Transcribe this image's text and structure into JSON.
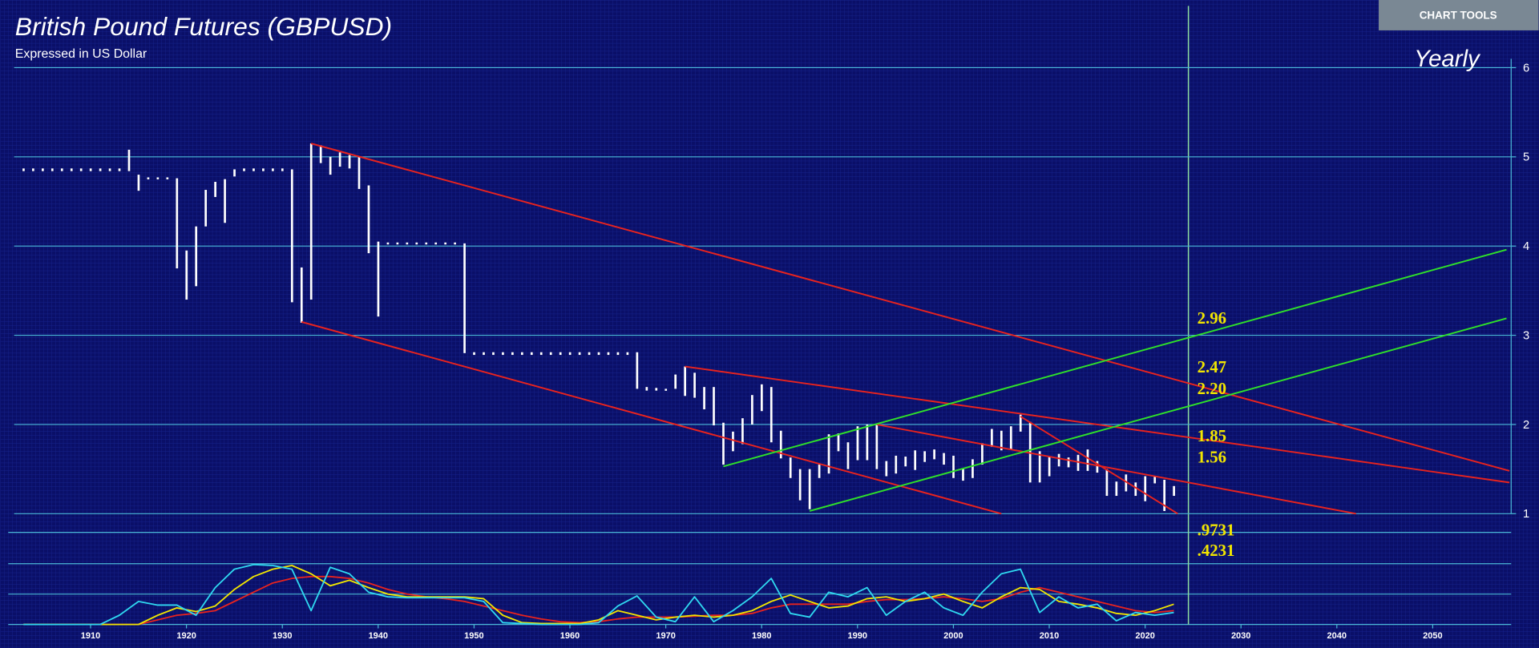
{
  "toolbar": {
    "button": "CHART TOOLS"
  },
  "chart_data": [
    {
      "type": "ohlc",
      "title": "British Pound Futures (GBPUSD)",
      "subtitle": "Expressed in US Dollar",
      "timeframe": "Yearly",
      "color": "#ffffff",
      "xlim": [
        1902,
        2058
      ],
      "xticks": [
        1910,
        1920,
        1930,
        1940,
        1950,
        1960,
        1970,
        1980,
        1990,
        2000,
        2010,
        2020,
        2030,
        2040,
        2050
      ],
      "ylim": [
        1,
        6.75
      ],
      "yticks": [
        1,
        2,
        3,
        4,
        5,
        6
      ],
      "grid": true,
      "x": [
        1903,
        1904,
        1905,
        1906,
        1907,
        1908,
        1909,
        1910,
        1911,
        1912,
        1913,
        1914,
        1915,
        1916,
        1917,
        1918,
        1919,
        1920,
        1921,
        1922,
        1923,
        1924,
        1925,
        1926,
        1927,
        1928,
        1929,
        1930,
        1931,
        1932,
        1933,
        1934,
        1935,
        1936,
        1937,
        1938,
        1939,
        1940,
        1941,
        1942,
        1943,
        1944,
        1945,
        1946,
        1947,
        1948,
        1949,
        1950,
        1951,
        1952,
        1953,
        1954,
        1955,
        1956,
        1957,
        1958,
        1959,
        1960,
        1961,
        1962,
        1963,
        1964,
        1965,
        1966,
        1967,
        1968,
        1969,
        1970,
        1971,
        1972,
        1973,
        1974,
        1975,
        1976,
        1977,
        1978,
        1979,
        1980,
        1981,
        1982,
        1983,
        1984,
        1985,
        1986,
        1987,
        1988,
        1989,
        1990,
        1991,
        1992,
        1993,
        1994,
        1995,
        1996,
        1997,
        1998,
        1999,
        2000,
        2001,
        2002,
        2003,
        2004,
        2005,
        2006,
        2007,
        2008,
        2009,
        2010,
        2011,
        2012,
        2013,
        2014,
        2015,
        2016,
        2017,
        2018,
        2019,
        2020,
        2021,
        2022,
        2023
      ],
      "high": [
        4.87,
        4.87,
        4.87,
        4.87,
        4.87,
        4.87,
        4.87,
        4.87,
        4.87,
        4.87,
        4.87,
        5.08,
        4.8,
        4.77,
        4.77,
        4.77,
        4.76,
        3.95,
        4.22,
        4.63,
        4.72,
        4.75,
        4.86,
        4.87,
        4.87,
        4.87,
        4.87,
        4.87,
        4.86,
        3.76,
        5.15,
        5.13,
        5.0,
        5.05,
        5.02,
        5.0,
        4.68,
        4.05,
        4.04,
        4.04,
        4.04,
        4.04,
        4.04,
        4.04,
        4.04,
        4.04,
        4.03,
        2.81,
        2.81,
        2.81,
        2.81,
        2.81,
        2.81,
        2.81,
        2.81,
        2.81,
        2.81,
        2.81,
        2.81,
        2.81,
        2.81,
        2.81,
        2.81,
        2.81,
        2.81,
        2.42,
        2.41,
        2.4,
        2.56,
        2.65,
        2.58,
        2.42,
        2.42,
        2.02,
        1.92,
        2.07,
        2.33,
        2.45,
        2.42,
        1.93,
        1.63,
        1.5,
        1.5,
        1.55,
        1.89,
        1.9,
        1.8,
        1.98,
        2.0,
        2.01,
        1.59,
        1.65,
        1.64,
        1.71,
        1.7,
        1.72,
        1.68,
        1.65,
        1.5,
        1.61,
        1.79,
        1.95,
        1.93,
        1.98,
        2.11,
        2.03,
        1.7,
        1.64,
        1.67,
        1.63,
        1.66,
        1.72,
        1.59,
        1.5,
        1.36,
        1.44,
        1.35,
        1.42,
        1.42,
        1.38,
        1.31
      ],
      "low": [
        4.84,
        4.84,
        4.84,
        4.84,
        4.84,
        4.84,
        4.84,
        4.84,
        4.84,
        4.84,
        4.84,
        4.84,
        4.62,
        4.75,
        4.75,
        4.75,
        3.75,
        3.4,
        3.55,
        4.22,
        4.55,
        4.26,
        4.78,
        4.84,
        4.84,
        4.84,
        4.84,
        4.84,
        3.37,
        3.14,
        3.4,
        4.93,
        4.8,
        4.89,
        4.87,
        4.64,
        3.92,
        3.21,
        4.02,
        4.02,
        4.02,
        4.02,
        4.02,
        4.02,
        4.02,
        4.02,
        2.8,
        2.78,
        2.78,
        2.78,
        2.78,
        2.78,
        2.78,
        2.78,
        2.78,
        2.78,
        2.78,
        2.78,
        2.78,
        2.78,
        2.78,
        2.78,
        2.78,
        2.78,
        2.4,
        2.38,
        2.38,
        2.38,
        2.4,
        2.32,
        2.3,
        2.17,
        1.99,
        1.55,
        1.7,
        1.78,
        2.0,
        2.15,
        1.8,
        1.62,
        1.4,
        1.15,
        1.05,
        1.4,
        1.45,
        1.7,
        1.5,
        1.6,
        1.6,
        1.5,
        1.42,
        1.45,
        1.53,
        1.49,
        1.58,
        1.61,
        1.55,
        1.4,
        1.37,
        1.4,
        1.55,
        1.75,
        1.71,
        1.72,
        1.92,
        1.35,
        1.35,
        1.42,
        1.53,
        1.52,
        1.48,
        1.48,
        1.46,
        1.2,
        1.2,
        1.25,
        1.2,
        1.14,
        1.34,
        1.03,
        1.2
      ],
      "trend_lines": [
        {
          "color": "#e8231e",
          "x": [
            1933,
            2058
          ],
          "y": [
            5.15,
            1.48
          ]
        },
        {
          "color": "#e8231e",
          "x": [
            1932,
            2005
          ],
          "y": [
            3.15,
            1.0
          ]
        },
        {
          "color": "#e8231e",
          "x": [
            1972,
            2058
          ],
          "y": [
            2.65,
            1.35
          ]
        },
        {
          "color": "#e8231e",
          "x": [
            1992,
            2042
          ],
          "y": [
            2.0,
            1.0
          ]
        },
        {
          "color": "#e8231e",
          "x": [
            2007,
            2023.4
          ],
          "y": [
            2.09,
            1.0
          ]
        },
        {
          "color": "#2fe02a",
          "x": [
            1976,
            2057.7
          ],
          "y": [
            1.53,
            3.96
          ]
        },
        {
          "color": "#2fe02a",
          "x": [
            1985,
            2057.7
          ],
          "y": [
            1.03,
            3.19
          ]
        }
      ],
      "annotations": [
        "2.96",
        "2.47",
        "2.20",
        "1.85",
        "1.56",
        ".9731",
        ".4231"
      ]
    },
    {
      "type": "line",
      "xlim": [
        1902,
        2058
      ],
      "ylim": [
        0,
        100
      ],
      "x": [
        1903,
        1905,
        1907,
        1909,
        1911,
        1913,
        1915,
        1917,
        1919,
        1921,
        1923,
        1925,
        1927,
        1929,
        1931,
        1933,
        1935,
        1937,
        1939,
        1941,
        1943,
        1945,
        1947,
        1949,
        1951,
        1953,
        1955,
        1957,
        1959,
        1961,
        1963,
        1965,
        1967,
        1969,
        1971,
        1973,
        1975,
        1977,
        1979,
        1981,
        1983,
        1985,
        1987,
        1989,
        1991,
        1993,
        1995,
        1997,
        1999,
        2001,
        2003,
        2005,
        2007,
        2009,
        2011,
        2013,
        2015,
        2017,
        2019,
        2021,
        2023
      ],
      "series": [
        {
          "color": "#e8231e",
          "values": [
            0,
            0,
            0,
            0,
            0,
            0,
            0,
            5,
            10,
            12,
            15,
            25,
            35,
            45,
            50,
            52,
            52,
            50,
            45,
            38,
            33,
            30,
            28,
            25,
            20,
            15,
            10,
            6,
            3,
            2,
            3,
            6,
            8,
            8,
            8,
            9,
            10,
            10,
            12,
            18,
            22,
            22,
            22,
            22,
            25,
            27,
            27,
            28,
            30,
            28,
            25,
            28,
            35,
            40,
            35,
            30,
            25,
            20,
            15,
            13,
            15
          ]
        },
        {
          "color": "#f2e600",
          "values": [
            0,
            0,
            0,
            0,
            0,
            0,
            0,
            10,
            18,
            14,
            20,
            38,
            52,
            60,
            64,
            55,
            42,
            48,
            40,
            33,
            30,
            30,
            30,
            30,
            28,
            10,
            2,
            1,
            1,
            1,
            5,
            15,
            10,
            5,
            8,
            10,
            8,
            10,
            15,
            25,
            32,
            25,
            18,
            20,
            28,
            30,
            25,
            28,
            33,
            25,
            18,
            30,
            40,
            38,
            25,
            22,
            18,
            12,
            10,
            15,
            22
          ]
        },
        {
          "color": "#2fd8f0",
          "values": [
            0,
            0,
            0,
            0,
            0,
            10,
            25,
            21,
            21,
            10,
            40,
            60,
            65,
            64,
            60,
            15,
            62,
            55,
            35,
            30,
            29,
            29,
            29,
            29,
            25,
            2,
            1,
            0,
            0,
            0,
            2,
            20,
            31,
            8,
            3,
            30,
            3,
            15,
            30,
            50,
            12,
            8,
            35,
            30,
            40,
            10,
            25,
            35,
            18,
            10,
            35,
            55,
            60,
            13,
            30,
            18,
            22,
            4,
            13,
            10,
            13
          ]
        }
      ]
    }
  ]
}
